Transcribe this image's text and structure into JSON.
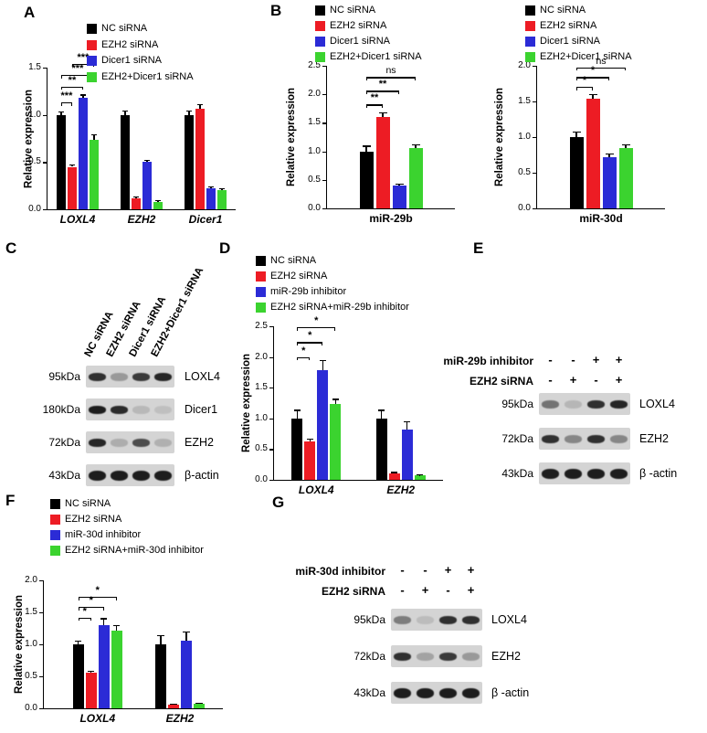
{
  "figure": {
    "background": "#ffffff"
  },
  "panels": {
    "A": "A",
    "B": "B",
    "C": "C",
    "D": "D",
    "E": "E",
    "F": "F",
    "G": "G"
  },
  "colors": {
    "black_series": "#000000",
    "red_series": "#ed1c24",
    "blue_series": "#2b2bd6",
    "green_series": "#3bd32f"
  },
  "chart_data": [
    {
      "id": "A",
      "type": "bar",
      "ylabel": "Relative expression",
      "ylim": [
        0,
        1.5
      ],
      "yticks": [
        0,
        0.5,
        1.0,
        1.5
      ],
      "categories": [
        "LOXL4",
        "EZH2",
        "Dicer1"
      ],
      "legend_position": "top-left-inside",
      "series": [
        {
          "name": "NC siRNA",
          "color": "#000000",
          "values": [
            1.0,
            1.0,
            1.0
          ],
          "errors": [
            0.03,
            0.04,
            0.04
          ]
        },
        {
          "name": "EZH2 siRNA",
          "color": "#ed1c24",
          "values": [
            0.45,
            0.12,
            1.06
          ],
          "errors": [
            0.02,
            0.01,
            0.05
          ]
        },
        {
          "name": "Dicer1 siRNA",
          "color": "#2b2bd6",
          "values": [
            1.18,
            0.5,
            0.22
          ],
          "errors": [
            0.03,
            0.02,
            0.02
          ]
        },
        {
          "name": "EZH2+Dicer1 siRNA",
          "color": "#3bd32f",
          "values": [
            0.74,
            0.08,
            0.2
          ],
          "errors": [
            0.05,
            0.01,
            0.02
          ]
        }
      ],
      "significance": [
        {
          "category": 0,
          "from": 0,
          "to": 1,
          "label": "***",
          "y": 1.13
        },
        {
          "category": 0,
          "from": 0,
          "to": 2,
          "label": "**",
          "y": 1.3
        },
        {
          "category": 0,
          "from": 0,
          "to": 3,
          "label": "***",
          "y": 1.42
        },
        {
          "category": 0,
          "from": 1,
          "to": 3,
          "label": "***",
          "y": 1.54
        }
      ]
    },
    {
      "id": "B1",
      "type": "bar",
      "ylabel": "Relative expression",
      "ylim": [
        0,
        2.5
      ],
      "yticks": [
        0,
        0.5,
        1.0,
        1.5,
        2.0,
        2.5
      ],
      "categories": [
        "miR-29b"
      ],
      "legend_position": "top-inside",
      "series": [
        {
          "name": "NC siRNA",
          "color": "#000000",
          "values": [
            1.0
          ],
          "errors": [
            0.09
          ]
        },
        {
          "name": "EZH2 siRNA",
          "color": "#ed1c24",
          "values": [
            1.6
          ],
          "errors": [
            0.07
          ]
        },
        {
          "name": "Dicer1 siRNA",
          "color": "#2b2bd6",
          "values": [
            0.4
          ],
          "errors": [
            0.03
          ]
        },
        {
          "name": "EZH2+Dicer1 siRNA",
          "color": "#3bd32f",
          "values": [
            1.05
          ],
          "errors": [
            0.07
          ]
        }
      ],
      "significance": [
        {
          "category": 0,
          "from": 0,
          "to": 1,
          "label": "**",
          "y": 1.82
        },
        {
          "category": 0,
          "from": 0,
          "to": 2,
          "label": "**",
          "y": 2.06
        },
        {
          "category": 0,
          "from": 0,
          "to": 3,
          "label": "ns",
          "y": 2.3
        }
      ]
    },
    {
      "id": "B2",
      "type": "bar",
      "ylabel": "Relative expression",
      "ylim": [
        0,
        2.0
      ],
      "yticks": [
        0,
        0.5,
        1.0,
        1.5,
        2.0
      ],
      "categories": [
        "miR-30d"
      ],
      "legend_position": "top-inside",
      "series": [
        {
          "name": "NC siRNA",
          "color": "#000000",
          "values": [
            1.0
          ],
          "errors": [
            0.07
          ]
        },
        {
          "name": "EZH2 siRNA",
          "color": "#ed1c24",
          "values": [
            1.54
          ],
          "errors": [
            0.06
          ]
        },
        {
          "name": "Dicer1 siRNA",
          "color": "#2b2bd6",
          "values": [
            0.72
          ],
          "errors": [
            0.04
          ]
        },
        {
          "name": "EZH2+Dicer1 siRNA",
          "color": "#3bd32f",
          "values": [
            0.85
          ],
          "errors": [
            0.04
          ]
        }
      ],
      "significance": [
        {
          "category": 0,
          "from": 0,
          "to": 1,
          "label": "*",
          "y": 1.7
        },
        {
          "category": 0,
          "from": 0,
          "to": 2,
          "label": "*",
          "y": 1.84
        },
        {
          "category": 0,
          "from": 0,
          "to": 3,
          "label": "ns",
          "y": 1.98
        }
      ]
    },
    {
      "id": "D",
      "type": "bar",
      "ylabel": "Relative expression",
      "ylim": [
        0,
        2.5
      ],
      "yticks": [
        0,
        0.5,
        1.0,
        1.5,
        2.0,
        2.5
      ],
      "categories": [
        "LOXL4",
        "EZH2"
      ],
      "legend_position": "top-inside",
      "series": [
        {
          "name": "NC siRNA",
          "color": "#000000",
          "values": [
            1.0,
            1.0
          ],
          "errors": [
            0.13,
            0.13
          ]
        },
        {
          "name": "EZH2 siRNA",
          "color": "#ed1c24",
          "values": [
            0.63,
            0.1
          ],
          "errors": [
            0.03,
            0.02
          ]
        },
        {
          "name": "miR-29b inhibitor",
          "color": "#2b2bd6",
          "values": [
            1.78,
            0.82
          ],
          "errors": [
            0.16,
            0.13
          ]
        },
        {
          "name": "EZH2 siRNA+miR-29b inhibitor",
          "color": "#3bd32f",
          "values": [
            1.23,
            0.07
          ],
          "errors": [
            0.08,
            0.01
          ]
        }
      ],
      "significance": [
        {
          "category": 0,
          "from": 0,
          "to": 1,
          "label": "*",
          "y": 2.0
        },
        {
          "category": 0,
          "from": 0,
          "to": 2,
          "label": "*",
          "y": 2.24
        },
        {
          "category": 0,
          "from": 0,
          "to": 3,
          "label": "*",
          "y": 2.48
        }
      ]
    },
    {
      "id": "F",
      "type": "bar",
      "ylabel": "Relative expression",
      "ylim": [
        0,
        2.0
      ],
      "yticks": [
        0,
        0.5,
        1.0,
        1.5,
        2.0
      ],
      "categories": [
        "LOXL4",
        "EZH2"
      ],
      "legend_position": "top-inside",
      "series": [
        {
          "name": "NC siRNA",
          "color": "#000000",
          "values": [
            1.0,
            1.0
          ],
          "errors": [
            0.05,
            0.13
          ]
        },
        {
          "name": "EZH2 siRNA",
          "color": "#ed1c24",
          "values": [
            0.56,
            0.06
          ],
          "errors": [
            0.02,
            0.01
          ]
        },
        {
          "name": "miR-30d inhibitor",
          "color": "#2b2bd6",
          "values": [
            1.3,
            1.06
          ],
          "errors": [
            0.1,
            0.13
          ]
        },
        {
          "name": "EZH2 siRNA+miR-30d inhibitor",
          "color": "#3bd32f",
          "values": [
            1.21,
            0.07
          ],
          "errors": [
            0.08,
            0.01
          ]
        }
      ],
      "significance": [
        {
          "category": 0,
          "from": 0,
          "to": 1,
          "label": "*",
          "y": 1.42
        },
        {
          "category": 0,
          "from": 0,
          "to": 2,
          "label": "*",
          "y": 1.58
        },
        {
          "category": 0,
          "from": 0,
          "to": 3,
          "label": "*",
          "y": 1.74
        }
      ]
    }
  ],
  "blots": {
    "C": {
      "lane_labels": [
        "NC siRNA",
        "EZH2 siRNA",
        "Dicer1 siRNA",
        "EZH2+Dicer1 siRNA"
      ],
      "rows": [
        {
          "kda": "95kDa",
          "protein": "LOXL4",
          "bands": [
            0.85,
            0.3,
            0.8,
            0.9
          ]
        },
        {
          "kda": "180kDa",
          "protein": "Dicer1",
          "bands": [
            0.95,
            0.88,
            0.14,
            0.1
          ]
        },
        {
          "kda": "72kDa",
          "protein": "EZH2",
          "bands": [
            0.9,
            0.2,
            0.7,
            0.18
          ]
        },
        {
          "kda": "43kDa",
          "protein": "β-actin",
          "bands": [
            0.95,
            0.95,
            0.95,
            0.95
          ]
        }
      ]
    },
    "E": {
      "header_rows": [
        {
          "label": "miR-29b inhibitor",
          "symbols": [
            "-",
            "-",
            "+",
            "+"
          ]
        },
        {
          "label": "EZH2 siRNA",
          "symbols": [
            "-",
            "+",
            "-",
            "+"
          ]
        }
      ],
      "rows": [
        {
          "kda": "95kDa",
          "protein": "LOXL4",
          "bands": [
            0.5,
            0.15,
            0.85,
            0.9
          ]
        },
        {
          "kda": "72kDa",
          "protein": "EZH2",
          "bands": [
            0.85,
            0.4,
            0.85,
            0.4
          ]
        },
        {
          "kda": "43kDa",
          "protein": "β -actin",
          "bands": [
            0.95,
            0.95,
            0.95,
            0.95
          ]
        }
      ]
    },
    "G": {
      "header_rows": [
        {
          "label": "miR-30d inhibitor",
          "symbols": [
            "-",
            "-",
            "+",
            "+"
          ]
        },
        {
          "label": "EZH2 siRNA",
          "symbols": [
            "-",
            "+",
            "-",
            "+"
          ]
        }
      ],
      "rows": [
        {
          "kda": "95kDa",
          "protein": "LOXL4",
          "bands": [
            0.45,
            0.12,
            0.85,
            0.85
          ]
        },
        {
          "kda": "72kDa",
          "protein": "EZH2",
          "bands": [
            0.85,
            0.25,
            0.8,
            0.3
          ]
        },
        {
          "kda": "43kDa",
          "protein": "β -actin",
          "bands": [
            0.95,
            0.95,
            0.95,
            0.95
          ]
        }
      ]
    }
  }
}
